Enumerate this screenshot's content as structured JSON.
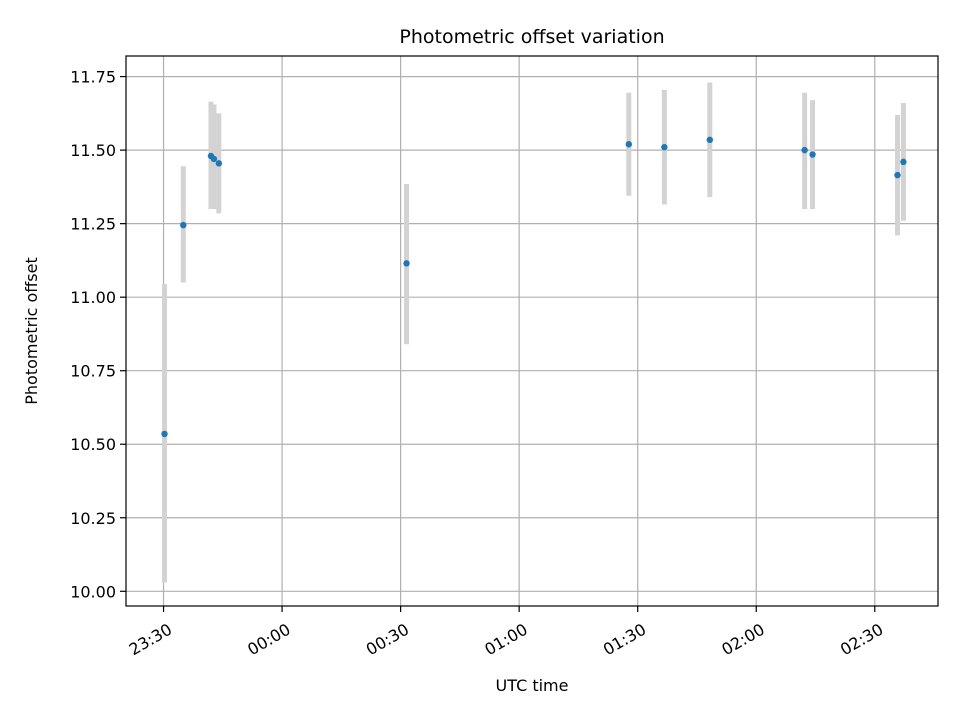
{
  "chart_data": {
    "type": "scatter",
    "title": "Photometric offset variation",
    "xlabel": "UTC time",
    "ylabel": "Photometric offset",
    "x_tick_labels": [
      "23:30",
      "00:00",
      "00:30",
      "01:00",
      "01:30",
      "02:00",
      "02:30"
    ],
    "y_tick_labels": [
      "10.00",
      "10.25",
      "10.50",
      "10.75",
      "11.00",
      "11.25",
      "11.50",
      "11.75"
    ],
    "x_ticks": [
      "23:30",
      "00:00",
      "00:30",
      "01:00",
      "01:30",
      "02:00",
      "02:30"
    ],
    "y_ticks": [
      10.0,
      10.25,
      10.5,
      10.75,
      11.0,
      11.25,
      11.5,
      11.75
    ],
    "xlim": [
      "23:20:30",
      "02:46:00"
    ],
    "ylim": [
      9.95,
      11.82
    ],
    "grid": true,
    "marker_color": "#1f77b4",
    "errorbar_color": "#d3d3d3",
    "points": [
      {
        "time": "23:30:15",
        "value": 10.535,
        "err_low": 10.03,
        "err_high": 11.045
      },
      {
        "time": "23:35:00",
        "value": 11.245,
        "err_low": 11.05,
        "err_high": 11.445
      },
      {
        "time": "23:42:00",
        "value": 11.48,
        "err_low": 11.3,
        "err_high": 11.665
      },
      {
        "time": "23:42:45",
        "value": 11.47,
        "err_low": 11.3,
        "err_high": 11.655
      },
      {
        "time": "23:44:00",
        "value": 11.455,
        "err_low": 11.285,
        "err_high": 11.625
      },
      {
        "time": "00:31:30",
        "value": 11.115,
        "err_low": 10.84,
        "err_high": 11.385
      },
      {
        "time": "01:27:45",
        "value": 11.52,
        "err_low": 11.345,
        "err_high": 11.695
      },
      {
        "time": "01:36:45",
        "value": 11.51,
        "err_low": 11.315,
        "err_high": 11.705
      },
      {
        "time": "01:48:15",
        "value": 11.535,
        "err_low": 11.34,
        "err_high": 11.73
      },
      {
        "time": "02:12:15",
        "value": 11.5,
        "err_low": 11.3,
        "err_high": 11.695
      },
      {
        "time": "02:14:15",
        "value": 11.485,
        "err_low": 11.3,
        "err_high": 11.67
      },
      {
        "time": "02:35:45",
        "value": 11.415,
        "err_low": 11.21,
        "err_high": 11.62
      },
      {
        "time": "02:37:15",
        "value": 11.46,
        "err_low": 11.26,
        "err_high": 11.66
      }
    ]
  }
}
